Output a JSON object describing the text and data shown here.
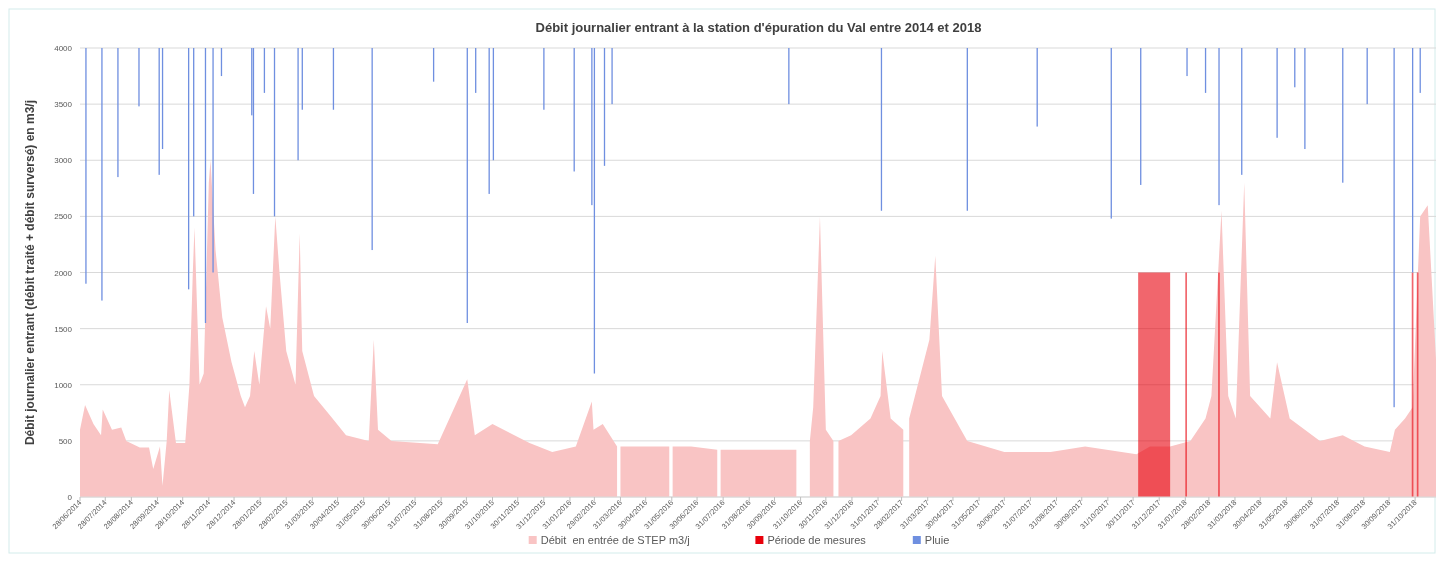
{
  "chart_data": {
    "type": "area",
    "title": "Débit journalier entrant à la station d'épuration du Val entre 2014 et 2018",
    "ylabel": "Débit journalier entrant (débit traité + débit surversé) en m3/j",
    "xlim": [
      "2014-06-28",
      "2018-11-26"
    ],
    "xticks": [
      {
        "value": "2014-06-28",
        "label": "28/06/2014"
      },
      {
        "value": "2014-07-28",
        "label": "28/07/2014"
      },
      {
        "value": "2014-08-28",
        "label": "28/08/2014"
      },
      {
        "value": "2014-09-28",
        "label": "28/09/2014"
      },
      {
        "value": "2014-10-28",
        "label": "28/10/2014"
      },
      {
        "value": "2014-11-28",
        "label": "28/11/2014"
      },
      {
        "value": "2014-12-28",
        "label": "28/12/2014"
      },
      {
        "value": "2015-01-28",
        "label": "28/01/2015"
      },
      {
        "value": "2015-02-28",
        "label": "28/02/2015"
      },
      {
        "value": "2015-03-31",
        "label": "31/03/2015"
      },
      {
        "value": "2015-04-30",
        "label": "30/04/2015"
      },
      {
        "value": "2015-05-31",
        "label": "31/05/2015"
      },
      {
        "value": "2015-06-30",
        "label": "30/06/2015"
      },
      {
        "value": "2015-07-31",
        "label": "31/07/2015"
      },
      {
        "value": "2015-08-31",
        "label": "31/08/2015"
      },
      {
        "value": "2015-09-30",
        "label": "30/09/2015"
      },
      {
        "value": "2015-10-31",
        "label": "31/10/2015"
      },
      {
        "value": "2015-11-30",
        "label": "30/11/2015"
      },
      {
        "value": "2015-12-31",
        "label": "31/12/2015"
      },
      {
        "value": "2016-01-31",
        "label": "31/01/2016"
      },
      {
        "value": "2016-02-29",
        "label": "29/02/2016"
      },
      {
        "value": "2016-03-31",
        "label": "31/03/2016"
      },
      {
        "value": "2016-04-30",
        "label": "30/04/2016"
      },
      {
        "value": "2016-05-31",
        "label": "31/05/2016"
      },
      {
        "value": "2016-06-30",
        "label": "30/06/2016"
      },
      {
        "value": "2016-07-31",
        "label": "31/07/2016"
      },
      {
        "value": "2016-08-31",
        "label": "31/08/2016"
      },
      {
        "value": "2016-09-30",
        "label": "30/09/2016"
      },
      {
        "value": "2016-10-31",
        "label": "31/10/2016"
      },
      {
        "value": "2016-11-30",
        "label": "30/11/2016"
      },
      {
        "value": "2016-12-31",
        "label": "31/12/2016"
      },
      {
        "value": "2017-01-31",
        "label": "31/01/2017"
      },
      {
        "value": "2017-02-28",
        "label": "28/02/2017"
      },
      {
        "value": "2017-03-31",
        "label": "31/03/2017"
      },
      {
        "value": "2017-04-30",
        "label": "30/04/2017"
      },
      {
        "value": "2017-05-31",
        "label": "31/05/2017"
      },
      {
        "value": "2017-06-30",
        "label": "30/06/2017"
      },
      {
        "value": "2017-07-31",
        "label": "31/07/2017"
      },
      {
        "value": "2017-08-31",
        "label": "31/08/2017"
      },
      {
        "value": "2017-09-30",
        "label": "30/09/2017"
      },
      {
        "value": "2017-10-31",
        "label": "31/10/2017"
      },
      {
        "value": "2017-11-30",
        "label": "30/11/2017"
      },
      {
        "value": "2017-12-31",
        "label": "31/12/2017"
      },
      {
        "value": "2018-01-31",
        "label": "31/01/2018"
      },
      {
        "value": "2018-02-28",
        "label": "28/02/2018"
      },
      {
        "value": "2018-03-31",
        "label": "31/03/2018"
      },
      {
        "value": "2018-04-30",
        "label": "30/04/2018"
      },
      {
        "value": "2018-05-31",
        "label": "31/05/2018"
      },
      {
        "value": "2018-06-30",
        "label": "30/06/2018"
      },
      {
        "value": "2018-07-31",
        "label": "31/07/2018"
      },
      {
        "value": "2018-08-31",
        "label": "31/08/2018"
      },
      {
        "value": "2018-09-30",
        "label": "30/09/2018"
      },
      {
        "value": "2018-10-31",
        "label": "31/10/2018"
      }
    ],
    "ylim": [
      0,
      4000
    ],
    "yticks": [
      0,
      500,
      1000,
      1500,
      2000,
      2500,
      3000,
      3500,
      4000
    ],
    "grid": "y",
    "legend": "bottom",
    "series": [
      {
        "name": "Débit  en entrée de STEP m3/j",
        "color": "#f9c4c4",
        "x": [
          "2014-06-28",
          "2014-07-04",
          "2014-07-14",
          "2014-07-23",
          "2014-07-25",
          "2014-08-05",
          "2014-08-16",
          "2014-08-22",
          "2014-09-07",
          "2014-09-18",
          "2014-09-23",
          "2014-10-01",
          "2014-10-04",
          "2014-10-09",
          "2014-10-12",
          "2014-10-20",
          "2014-10-31",
          "2014-11-05",
          "2014-11-09",
          "2014-11-11",
          "2014-11-17",
          "2014-11-22",
          "2014-11-28",
          "2014-11-30",
          "2014-12-06",
          "2014-12-14",
          "2014-12-25",
          "2015-01-05",
          "2015-01-10",
          "2015-01-16",
          "2015-01-21",
          "2015-01-27",
          "2015-02-04",
          "2015-02-09",
          "2015-02-15",
          "2015-02-20",
          "2015-02-28",
          "2015-03-11",
          "2015-03-16",
          "2015-03-19",
          "2015-04-02",
          "2015-04-24",
          "2015-05-10",
          "2015-06-06",
          "2015-06-12",
          "2015-06-17",
          "2015-07-03",
          "2015-08-27",
          "2015-10-01",
          "2015-10-10",
          "2015-10-31",
          "2015-12-14",
          "2016-01-10",
          "2016-02-07",
          "2016-02-26",
          "2016-02-28",
          "2016-03-10",
          "2016-03-27",
          "2016-03-29",
          "2016-03-31",
          "2016-04-28",
          "2016-05-28",
          "2016-05-30",
          "2016-06-01",
          "2016-06-23",
          "2016-07-24",
          "2016-07-26",
          "2016-07-28",
          "2016-09-13",
          "2016-10-26",
          "2016-11-03",
          "2016-11-11",
          "2016-11-15",
          "2016-11-23",
          "2016-11-30",
          "2016-12-09",
          "2016-12-12",
          "2016-12-15",
          "2016-12-30",
          "2017-01-22",
          "2017-02-03",
          "2017-02-05",
          "2017-02-15",
          "2017-03-02",
          "2017-03-05",
          "2017-03-09",
          "2017-04-02",
          "2017-04-09",
          "2017-04-17",
          "2017-05-17",
          "2017-06-30",
          "2017-08-24",
          "2017-10-04",
          "2017-12-04",
          "2017-12-20",
          "2018-01-13",
          "2018-02-06",
          "2018-02-24",
          "2018-03-03",
          "2018-03-15",
          "2018-03-23",
          "2018-04-01",
          "2018-04-11",
          "2018-04-18",
          "2018-05-12",
          "2018-05-20",
          "2018-06-04",
          "2018-07-10",
          "2018-08-06",
          "2018-09-01",
          "2018-10-01",
          "2018-10-07",
          "2018-10-19",
          "2018-10-28",
          "2018-11-06",
          "2018-11-15",
          "2018-11-25"
        ],
        "values": [
          600,
          820,
          650,
          550,
          780,
          600,
          620,
          500,
          440,
          440,
          250,
          450,
          100,
          500,
          950,
          480,
          480,
          1000,
          2000,
          2400,
          1000,
          1100,
          2800,
          3000,
          2200,
          1600,
          1200,
          900,
          800,
          900,
          1300,
          1000,
          1700,
          1500,
          2500,
          2000,
          1300,
          1000,
          2350,
          1300,
          900,
          700,
          550,
          500,
          1400,
          600,
          500,
          470,
          1050,
          550,
          650,
          480,
          400,
          450,
          850,
          600,
          650,
          450,
          null,
          450,
          450,
          450,
          null,
          450,
          450,
          420,
          null,
          420,
          420,
          420,
          null,
          500,
          800,
          2500,
          600,
          500,
          null,
          500,
          550,
          700,
          900,
          1300,
          700,
          600,
          null,
          700,
          1400,
          2150,
          900,
          500,
          400,
          400,
          450,
          380,
          450,
          450,
          500,
          700,
          900,
          2550,
          900,
          700,
          2800,
          900,
          700,
          1200,
          700,
          500,
          550,
          450,
          400,
          600,
          700,
          800,
          2500,
          2600,
          1200
        ]
      },
      {
        "name": "Période de mesures",
        "type": "area",
        "color": "#e8000b",
        "x": [
          "2017-12-06",
          "2018-01-13",
          "2018-01-20",
          "2018-01-31",
          "2018-02-02",
          "2018-02-20",
          "2018-03-11",
          "2018-03-13",
          "2018-06-01",
          "2018-10-27",
          "2018-10-29",
          "2018-10-31",
          "2018-11-02",
          "2018-11-04"
        ],
        "values": [
          2000,
          2000,
          null,
          2000,
          2000,
          null,
          2000,
          2000,
          null,
          2000,
          2000,
          null,
          2000,
          2000
        ]
      },
      {
        "name": "Pluie",
        "type": "bar",
        "color": "#6f8fe0",
        "x": [
          "2014-07-05",
          "2014-07-24",
          "2014-08-12",
          "2014-09-06",
          "2014-09-30",
          "2014-10-04",
          "2014-11-04",
          "2014-11-10",
          "2014-11-24",
          "2014-12-03",
          "2014-12-13",
          "2015-01-18",
          "2015-01-20",
          "2015-02-02",
          "2015-02-14",
          "2015-03-14",
          "2015-03-19",
          "2015-04-25",
          "2015-06-10",
          "2015-08-22",
          "2015-10-01",
          "2015-10-11",
          "2015-10-27",
          "2015-11-01",
          "2015-12-31",
          "2016-02-05",
          "2016-02-26",
          "2016-02-29",
          "2016-03-12",
          "2016-03-21",
          "2016-10-17",
          "2017-02-04",
          "2017-05-17",
          "2017-08-08",
          "2017-11-04",
          "2017-12-09",
          "2018-02-02",
          "2018-02-24",
          "2018-03-12",
          "2018-04-08",
          "2018-05-20",
          "2018-06-10",
          "2018-06-22",
          "2018-08-06",
          "2018-09-04",
          "2018-10-06",
          "2018-10-28",
          "2018-11-06"
        ],
        "base": [
          4000,
          4000,
          4000,
          4000,
          4000,
          4000,
          4000,
          4000,
          4000,
          4000,
          4000,
          4000,
          4000,
          4000,
          4000,
          4000,
          4000,
          4000,
          4000,
          4000,
          4000,
          4000,
          4000,
          4000,
          4000,
          4000,
          4000,
          4000,
          4000,
          4000,
          4000,
          4000,
          4000,
          4000,
          4000,
          4000,
          4000,
          4000,
          4000,
          4000,
          4000,
          4000,
          4000,
          4000,
          4000,
          4000,
          4000,
          4000
        ],
        "values": [
          -2100,
          -2250,
          -1150,
          -520,
          -1130,
          -900,
          -2150,
          -1500,
          -2450,
          -2000,
          -250,
          -600,
          -1300,
          -400,
          -1500,
          -1000,
          -550,
          -550,
          -1800,
          -300,
          -2450,
          -400,
          -1300,
          -1000,
          -550,
          -1100,
          -1400,
          -2900,
          -1050,
          -500,
          -500,
          -1450,
          -1450,
          -700,
          -1520,
          -1220,
          -250,
          -400,
          -1400,
          -1130,
          -800,
          -350,
          -900,
          -1200,
          -500,
          -3200,
          -2000,
          -400
        ]
      }
    ]
  }
}
